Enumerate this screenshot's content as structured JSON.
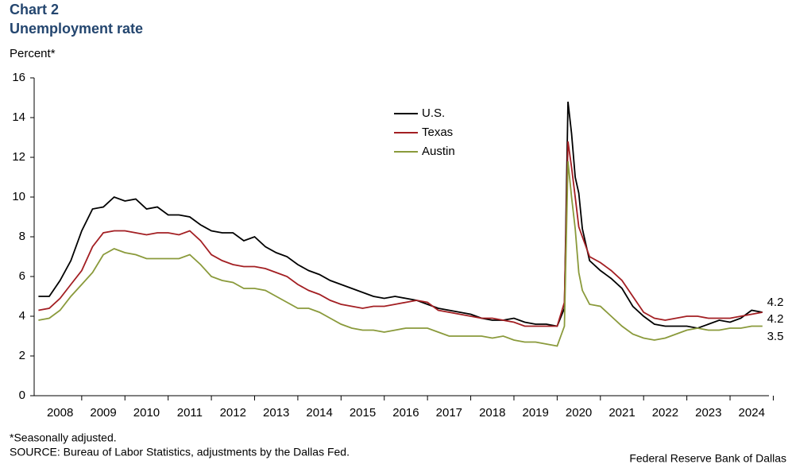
{
  "chart_data": {
    "type": "line",
    "title": "Chart 2",
    "subtitle": "Unemployment rate",
    "y_label": "Percent*",
    "footnote": "*Seasonally adjusted.",
    "source": "SOURCE: Bureau of Labor Statistics, adjustments by the Dallas Fed.",
    "credit": "Federal Reserve Bank of Dallas",
    "xlim": [
      2007.9,
      2024.9
    ],
    "ylim": [
      0,
      16
    ],
    "yticks": [
      0,
      2,
      4,
      6,
      8,
      10,
      12,
      14,
      16
    ],
    "xticks": [
      {
        "value": 2008.5,
        "label": "2008"
      },
      {
        "value": 2009.5,
        "label": "2009"
      },
      {
        "value": 2010.5,
        "label": "2010"
      },
      {
        "value": 2011.5,
        "label": "2011"
      },
      {
        "value": 2012.5,
        "label": "2012"
      },
      {
        "value": 2013.5,
        "label": "2013"
      },
      {
        "value": 2014.5,
        "label": "2014"
      },
      {
        "value": 2015.5,
        "label": "2015"
      },
      {
        "value": 2016.5,
        "label": "2016"
      },
      {
        "value": 2017.5,
        "label": "2017"
      },
      {
        "value": 2018.5,
        "label": "2018"
      },
      {
        "value": 2019.5,
        "label": "2019"
      },
      {
        "value": 2020.5,
        "label": "2020"
      },
      {
        "value": 2021.5,
        "label": "2021"
      },
      {
        "value": 2022.5,
        "label": "2022"
      },
      {
        "value": 2023.5,
        "label": "2023"
      },
      {
        "value": 2024.5,
        "label": "2024"
      }
    ],
    "grid": false,
    "x": [
      2008,
      2008.25,
      2008.5,
      2008.75,
      2009,
      2009.25,
      2009.5,
      2009.75,
      2010,
      2010.25,
      2010.5,
      2010.75,
      2011,
      2011.25,
      2011.5,
      2011.75,
      2012,
      2012.25,
      2012.5,
      2012.75,
      2013,
      2013.25,
      2013.5,
      2013.75,
      2014,
      2014.25,
      2014.5,
      2014.75,
      2015,
      2015.25,
      2015.5,
      2015.75,
      2016,
      2016.25,
      2016.5,
      2016.75,
      2017,
      2017.25,
      2017.5,
      2017.75,
      2018,
      2018.25,
      2018.5,
      2018.75,
      2019,
      2019.25,
      2019.5,
      2019.75,
      2020,
      2020.167,
      2020.25,
      2020.333,
      2020.417,
      2020.5,
      2020.583,
      2020.75,
      2021,
      2021.25,
      2021.5,
      2021.75,
      2022,
      2022.25,
      2022.5,
      2022.75,
      2023,
      2023.25,
      2023.5,
      2023.75,
      2024,
      2024.25,
      2024.5,
      2024.75
    ],
    "series": [
      {
        "name": "U.S.",
        "color": "#000000",
        "values": [
          5.0,
          5.0,
          5.8,
          6.8,
          8.3,
          9.4,
          9.5,
          10.0,
          9.8,
          9.9,
          9.4,
          9.5,
          9.1,
          9.1,
          9.0,
          8.6,
          8.3,
          8.2,
          8.2,
          7.8,
          8.0,
          7.5,
          7.2,
          7.0,
          6.6,
          6.3,
          6.1,
          5.8,
          5.6,
          5.4,
          5.2,
          5.0,
          4.9,
          5.0,
          4.9,
          4.8,
          4.6,
          4.4,
          4.3,
          4.2,
          4.1,
          3.9,
          3.8,
          3.8,
          3.9,
          3.7,
          3.6,
          3.6,
          3.5,
          4.4,
          14.8,
          13.2,
          11.0,
          10.2,
          8.4,
          6.8,
          6.3,
          5.9,
          5.4,
          4.5,
          4.0,
          3.6,
          3.5,
          3.5,
          3.5,
          3.4,
          3.6,
          3.8,
          3.7,
          3.9,
          4.3,
          4.2
        ]
      },
      {
        "name": "Texas",
        "color": "#a31f23",
        "values": [
          4.3,
          4.4,
          4.9,
          5.6,
          6.3,
          7.5,
          8.2,
          8.3,
          8.3,
          8.2,
          8.1,
          8.2,
          8.2,
          8.1,
          8.3,
          7.8,
          7.1,
          6.8,
          6.6,
          6.5,
          6.5,
          6.4,
          6.2,
          6.0,
          5.6,
          5.3,
          5.1,
          4.8,
          4.6,
          4.5,
          4.4,
          4.5,
          4.5,
          4.6,
          4.7,
          4.8,
          4.7,
          4.3,
          4.2,
          4.1,
          4.0,
          3.9,
          3.9,
          3.8,
          3.7,
          3.5,
          3.5,
          3.5,
          3.5,
          4.7,
          12.8,
          11.5,
          10.0,
          8.5,
          8.0,
          7.0,
          6.7,
          6.3,
          5.8,
          5.0,
          4.2,
          3.9,
          3.8,
          3.9,
          4.0,
          4.0,
          3.9,
          3.9,
          3.9,
          4.0,
          4.1,
          4.2
        ]
      },
      {
        "name": "Austin",
        "color": "#8a9a3b",
        "values": [
          3.8,
          3.9,
          4.3,
          5.0,
          5.6,
          6.2,
          7.1,
          7.4,
          7.2,
          7.1,
          6.9,
          6.9,
          6.9,
          6.9,
          7.1,
          6.6,
          6.0,
          5.8,
          5.7,
          5.4,
          5.4,
          5.3,
          5.0,
          4.7,
          4.4,
          4.4,
          4.2,
          3.9,
          3.6,
          3.4,
          3.3,
          3.3,
          3.2,
          3.3,
          3.4,
          3.4,
          3.4,
          3.2,
          3.0,
          3.0,
          3.0,
          3.0,
          2.9,
          3.0,
          2.8,
          2.7,
          2.7,
          2.6,
          2.5,
          3.5,
          11.8,
          10.0,
          8.4,
          6.2,
          5.3,
          4.6,
          4.5,
          4.0,
          3.5,
          3.1,
          2.9,
          2.8,
          2.9,
          3.1,
          3.3,
          3.4,
          3.3,
          3.3,
          3.4,
          3.4,
          3.5,
          3.5
        ]
      }
    ]
  }
}
